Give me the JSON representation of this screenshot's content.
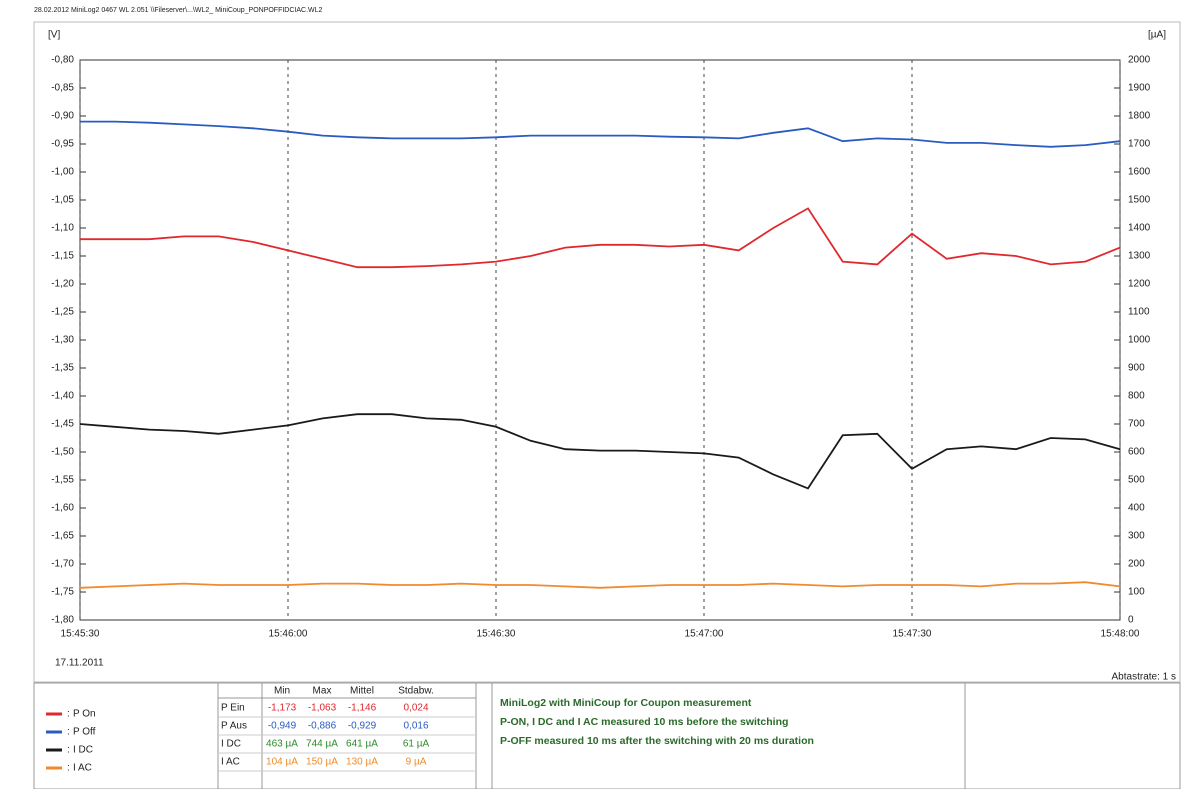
{
  "header": "28.02.2012 MiniLog2 0467 WL 2.051 \\\\Fileserver\\...\\WL2_ MiniCoup_PONPOFFIDCIAC.WL2",
  "chart_data": {
    "type": "line",
    "ylabel": "[V]",
    "y2label": "[µA]",
    "date": "17.11.2011",
    "sample_rate": "Abtastrate: 1 s",
    "x": [
      "15:45:30",
      "15:45:35",
      "15:45:40",
      "15:45:45",
      "15:45:50",
      "15:45:55",
      "15:46:00",
      "15:46:05",
      "15:46:10",
      "15:46:15",
      "15:46:20",
      "15:46:25",
      "15:46:30",
      "15:46:35",
      "15:46:40",
      "15:46:45",
      "15:46:50",
      "15:46:55",
      "15:47:00",
      "15:47:05",
      "15:47:10",
      "15:47:15",
      "15:47:20",
      "15:47:25",
      "15:47:30",
      "15:47:35",
      "15:47:40",
      "15:47:45",
      "15:47:50",
      "15:47:55",
      "15:48:00"
    ],
    "xlim": [
      "15:45:30",
      "15:48:00"
    ],
    "xticks": [
      "15:45:30",
      "15:46:00",
      "15:46:30",
      "15:47:00",
      "15:47:30",
      "15:48:00"
    ],
    "ylim": [
      -1.8,
      -0.8
    ],
    "yticks": [
      {
        "value": -0.8,
        "label": "-0,80"
      },
      {
        "value": -0.85,
        "label": "-0,85"
      },
      {
        "value": -0.9,
        "label": "-0,90"
      },
      {
        "value": -0.95,
        "label": "-0,95"
      },
      {
        "value": -1.0,
        "label": "-1,00"
      },
      {
        "value": -1.05,
        "label": "-1,05"
      },
      {
        "value": -1.1,
        "label": "-1,10"
      },
      {
        "value": -1.15,
        "label": "-1,15"
      },
      {
        "value": -1.2,
        "label": "-1,20"
      },
      {
        "value": -1.25,
        "label": "-1,25"
      },
      {
        "value": -1.3,
        "label": "-1,30"
      },
      {
        "value": -1.35,
        "label": "-1,35"
      },
      {
        "value": -1.4,
        "label": "-1,40"
      },
      {
        "value": -1.45,
        "label": "-1,45"
      },
      {
        "value": -1.5,
        "label": "-1,50"
      },
      {
        "value": -1.55,
        "label": "-1,55"
      },
      {
        "value": -1.6,
        "label": "-1,60"
      },
      {
        "value": -1.65,
        "label": "-1,65"
      },
      {
        "value": -1.7,
        "label": "-1,70"
      },
      {
        "value": -1.75,
        "label": "-1,75"
      },
      {
        "value": -1.8,
        "label": "-1,80"
      }
    ],
    "y2lim": [
      0,
      2000
    ],
    "y2ticks": [
      0,
      100,
      200,
      300,
      400,
      500,
      600,
      700,
      800,
      900,
      1000,
      1100,
      1200,
      1300,
      1400,
      1500,
      1600,
      1700,
      1800,
      1900,
      2000
    ],
    "grid": "x",
    "legend_separator": ":",
    "series": [
      {
        "name": "P On",
        "color": "#e0282e",
        "values": [
          -1.12,
          -1.12,
          -1.12,
          -1.115,
          -1.115,
          -1.125,
          -1.14,
          -1.155,
          -1.17,
          -1.17,
          -1.168,
          -1.165,
          -1.16,
          -1.15,
          -1.135,
          -1.13,
          -1.13,
          -1.133,
          -1.13,
          -1.14,
          -1.1,
          -1.065,
          -1.16,
          -1.165,
          -1.11,
          -1.155,
          -1.145,
          -1.15,
          -1.165,
          -1.16,
          -1.135
        ]
      },
      {
        "name": "P Off",
        "color": "#2a5cc0",
        "values": [
          -0.91,
          -0.91,
          -0.912,
          -0.915,
          -0.918,
          -0.922,
          -0.928,
          -0.935,
          -0.938,
          -0.94,
          -0.94,
          -0.94,
          -0.938,
          -0.935,
          -0.935,
          -0.935,
          -0.935,
          -0.937,
          -0.938,
          -0.94,
          -0.93,
          -0.922,
          -0.945,
          -0.94,
          -0.942,
          -0.948,
          -0.948,
          -0.952,
          -0.955,
          -0.952,
          -0.945
        ]
      },
      {
        "name": "I DC",
        "color": "#1a1a1a",
        "axis": "y2",
        "values": [
          700,
          690,
          680,
          675,
          665,
          680,
          695,
          720,
          735,
          735,
          720,
          715,
          690,
          640,
          610,
          605,
          605,
          600,
          595,
          580,
          520,
          470,
          660,
          665,
          540,
          610,
          620,
          610,
          650,
          645,
          610
        ]
      },
      {
        "name": "I AC",
        "color": "#f08a2c",
        "axis": "y2",
        "values": [
          115,
          120,
          125,
          130,
          125,
          125,
          125,
          130,
          130,
          125,
          125,
          130,
          125,
          125,
          120,
          115,
          120,
          125,
          125,
          125,
          130,
          125,
          120,
          125,
          125,
          125,
          120,
          130,
          130,
          135,
          120
        ]
      }
    ]
  },
  "table": {
    "columns": [
      "Min",
      "Max",
      "Mittel",
      "Stdabw."
    ],
    "rows": [
      {
        "label": "P Ein",
        "color": "#e0282e",
        "cells": [
          "-1,173",
          "-1,063",
          "-1,146",
          "0,024"
        ]
      },
      {
        "label": "P Aus",
        "color": "#2a5cc0",
        "cells": [
          "-0,949",
          "-0,886",
          "-0,929",
          "0,016"
        ]
      },
      {
        "label": "I DC",
        "color": "#2a8a2a",
        "cells": [
          "463 µA",
          "744 µA",
          "641 µA",
          "61 µA"
        ]
      },
      {
        "label": "I AC",
        "color": "#f08a2c",
        "cells": [
          "104 µA",
          "150 µA",
          "130 µA",
          "9 µA"
        ]
      }
    ]
  },
  "notes": [
    "MiniLog2 with MiniCoup for Coupon measurement",
    "P-ON, I DC and I AC measured 10 ms before the switching",
    "P-OFF measured 10 ms after the switching with 20 ms duration"
  ]
}
